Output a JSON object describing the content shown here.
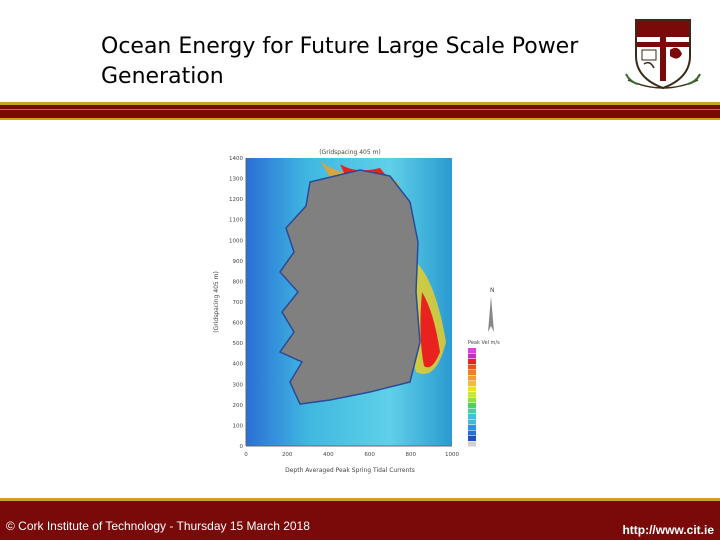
{
  "slide": {
    "title_line1": "Ocean Energy for Future Large Scale Power",
    "title_line2": "Generation"
  },
  "footer": {
    "left_text": "© Cork Institute of Technology - Thursday 15 March 2018",
    "right_text": "http://www.cit.ie"
  },
  "map": {
    "header": "(Gridspacing 405 m)",
    "ylabel": "(Gridspacing 405 m)",
    "xlabel": "Depth Averaged Peak Spring Tidal Currents",
    "yticks": [
      "1400",
      "1300",
      "1200",
      "1100",
      "1000",
      "900",
      "800",
      "700",
      "600",
      "500",
      "400",
      "300",
      "200",
      "100",
      "0"
    ],
    "xticks": [
      "0",
      "200",
      "400",
      "600",
      "800",
      "1000"
    ],
    "legend_title": "Peak Vel m/s",
    "north_label": "N"
  },
  "colors": {
    "brand": "#7a0a0a",
    "gold": "#c9a227",
    "land": "#808080",
    "sea_deep": "#2a6fd6",
    "sea_mid": "#3fb8e0",
    "current_high": "#e8231f"
  }
}
